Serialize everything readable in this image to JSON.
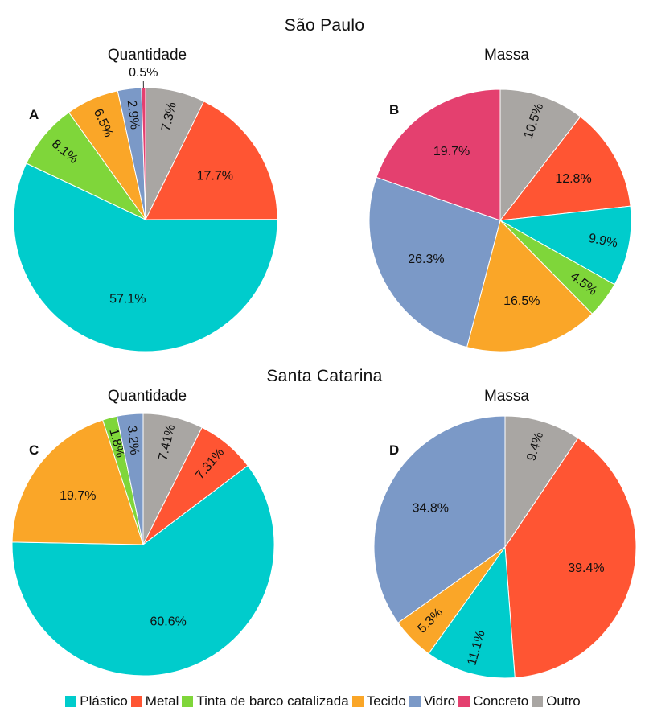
{
  "groups": [
    {
      "title": "São Paulo"
    },
    {
      "title": "Santa Catarina"
    }
  ],
  "legend": [
    {
      "label": "Plástico",
      "color": "#00CCCC"
    },
    {
      "label": "Metal",
      "color": "#FF5533"
    },
    {
      "label": "Tinta de barco catalizada",
      "color": "#7FD63A"
    },
    {
      "label": "Tecido",
      "color": "#FAA628"
    },
    {
      "label": "Vidro",
      "color": "#7B99C7"
    },
    {
      "label": "Concreto",
      "color": "#E4406F"
    },
    {
      "label": "Outro",
      "color": "#A9A6A3"
    }
  ],
  "chart_data": [
    {
      "type": "pie",
      "panel": "A",
      "title": "Quantidade",
      "slices": [
        {
          "category": "Outro",
          "value": 7.3,
          "label": "7.3%"
        },
        {
          "category": "Metal",
          "value": 17.7,
          "label": "17.7%"
        },
        {
          "category": "Plástico",
          "value": 57.1,
          "label": "57.1%"
        },
        {
          "category": "Tinta de barco catalizada",
          "value": 8.1,
          "label": "8.1%"
        },
        {
          "category": "Tecido",
          "value": 6.5,
          "label": "6.5%"
        },
        {
          "category": "Vidro",
          "value": 2.9,
          "label": "2.9%"
        },
        {
          "category": "Concreto",
          "value": 0.5,
          "label": "0.5%"
        }
      ]
    },
    {
      "type": "pie",
      "panel": "B",
      "title": "Massa",
      "slices": [
        {
          "category": "Outro",
          "value": 10.5,
          "label": "10.5%"
        },
        {
          "category": "Metal",
          "value": 12.8,
          "label": "12.8%"
        },
        {
          "category": "Plástico",
          "value": 9.9,
          "label": "9.9%"
        },
        {
          "category": "Tinta de barco catalizada",
          "value": 4.5,
          "label": "4.5%"
        },
        {
          "category": "Tecido",
          "value": 16.5,
          "label": "16.5%"
        },
        {
          "category": "Vidro",
          "value": 26.3,
          "label": "26.3%"
        },
        {
          "category": "Concreto",
          "value": 19.7,
          "label": "19.7%"
        }
      ]
    },
    {
      "type": "pie",
      "panel": "C",
      "title": "Quantidade",
      "slices": [
        {
          "category": "Outro",
          "value": 7.41,
          "label": "7.41%"
        },
        {
          "category": "Metal",
          "value": 7.31,
          "label": "7.31%"
        },
        {
          "category": "Plástico",
          "value": 60.6,
          "label": "60.6%"
        },
        {
          "category": "Tecido",
          "value": 19.7,
          "label": "19.7%"
        },
        {
          "category": "Tinta de barco catalizada",
          "value": 1.8,
          "label": "1.8%"
        },
        {
          "category": "Vidro",
          "value": 3.2,
          "label": "3.2%"
        }
      ]
    },
    {
      "type": "pie",
      "panel": "D",
      "title": "Massa",
      "slices": [
        {
          "category": "Outro",
          "value": 9.4,
          "label": "9.4%"
        },
        {
          "category": "Metal",
          "value": 39.4,
          "label": "39.4%"
        },
        {
          "category": "Plástico",
          "value": 11.1,
          "label": "11.1%"
        },
        {
          "category": "Tecido",
          "value": 5.3,
          "label": "5.3%"
        },
        {
          "category": "Vidro",
          "value": 34.8,
          "label": "34.8%"
        }
      ]
    }
  ]
}
